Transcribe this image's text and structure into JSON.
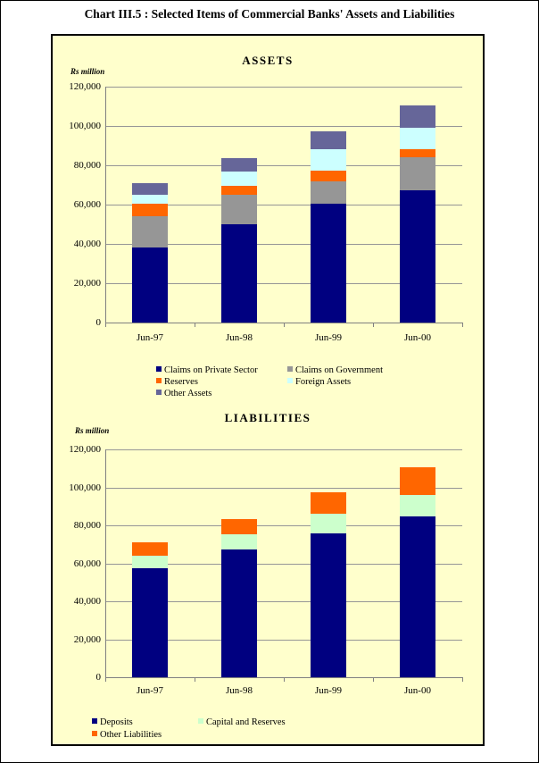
{
  "page_title": "Chart III.5 : Selected Items of Commercial Banks' Assets and Liabilities",
  "colors": {
    "page_background": "#FFFFFF",
    "chart_background": "#FFFFCC",
    "gridline": "#969696",
    "axis": "#808080",
    "text": "#000000"
  },
  "chart_data": [
    {
      "type": "bar",
      "stacked": true,
      "title": "ASSETS",
      "ylabel": "Rs million",
      "categories": [
        "Jun-97",
        "Jun-98",
        "Jun-99",
        "Jun-00"
      ],
      "series": [
        {
          "name": "Claims on Private Sector",
          "color": "#000080",
          "values": [
            38000,
            50000,
            60500,
            67500
          ]
        },
        {
          "name": "Claims on Government",
          "color": "#969696",
          "values": [
            16000,
            15000,
            11500,
            16500
          ]
        },
        {
          "name": "Reserves",
          "color": "#FF6600",
          "values": [
            6500,
            4500,
            5500,
            4000
          ]
        },
        {
          "name": "Foreign Assets",
          "color": "#CCFFFF",
          "values": [
            4500,
            7500,
            10500,
            11000
          ]
        },
        {
          "name": "Other Assets",
          "color": "#666699",
          "values": [
            6000,
            6500,
            9500,
            11500
          ]
        }
      ],
      "totals": [
        71000,
        83500,
        97500,
        110500
      ],
      "ylim": [
        0,
        120000
      ],
      "ytick_step": 20000,
      "ytick_labels": [
        "0",
        "20,000",
        "40,000",
        "60,000",
        "80,000",
        "100,000",
        "120,000"
      ],
      "grid": true,
      "legend_position": "below",
      "legend_columns": 2
    },
    {
      "type": "bar",
      "stacked": true,
      "title": "LIABILITIES",
      "ylabel": "Rs million",
      "categories": [
        "Jun-97",
        "Jun-98",
        "Jun-99",
        "Jun-00"
      ],
      "series": [
        {
          "name": "Deposits",
          "color": "#000080",
          "values": [
            57500,
            67500,
            76000,
            84500
          ]
        },
        {
          "name": "Capital and Reserves",
          "color": "#CCFFCC",
          "values": [
            6500,
            8000,
            10000,
            11500
          ]
        },
        {
          "name": "Other Liabilities",
          "color": "#FF6600",
          "values": [
            7000,
            8000,
            11500,
            14500
          ]
        }
      ],
      "totals": [
        71000,
        83500,
        97500,
        110500
      ],
      "ylim": [
        0,
        120000
      ],
      "ytick_step": 20000,
      "ytick_labels": [
        "0",
        "20,000",
        "40,000",
        "60,000",
        "80,000",
        "100,000",
        "120,000"
      ],
      "grid": true,
      "legend_position": "below",
      "legend_columns": 2
    }
  ]
}
